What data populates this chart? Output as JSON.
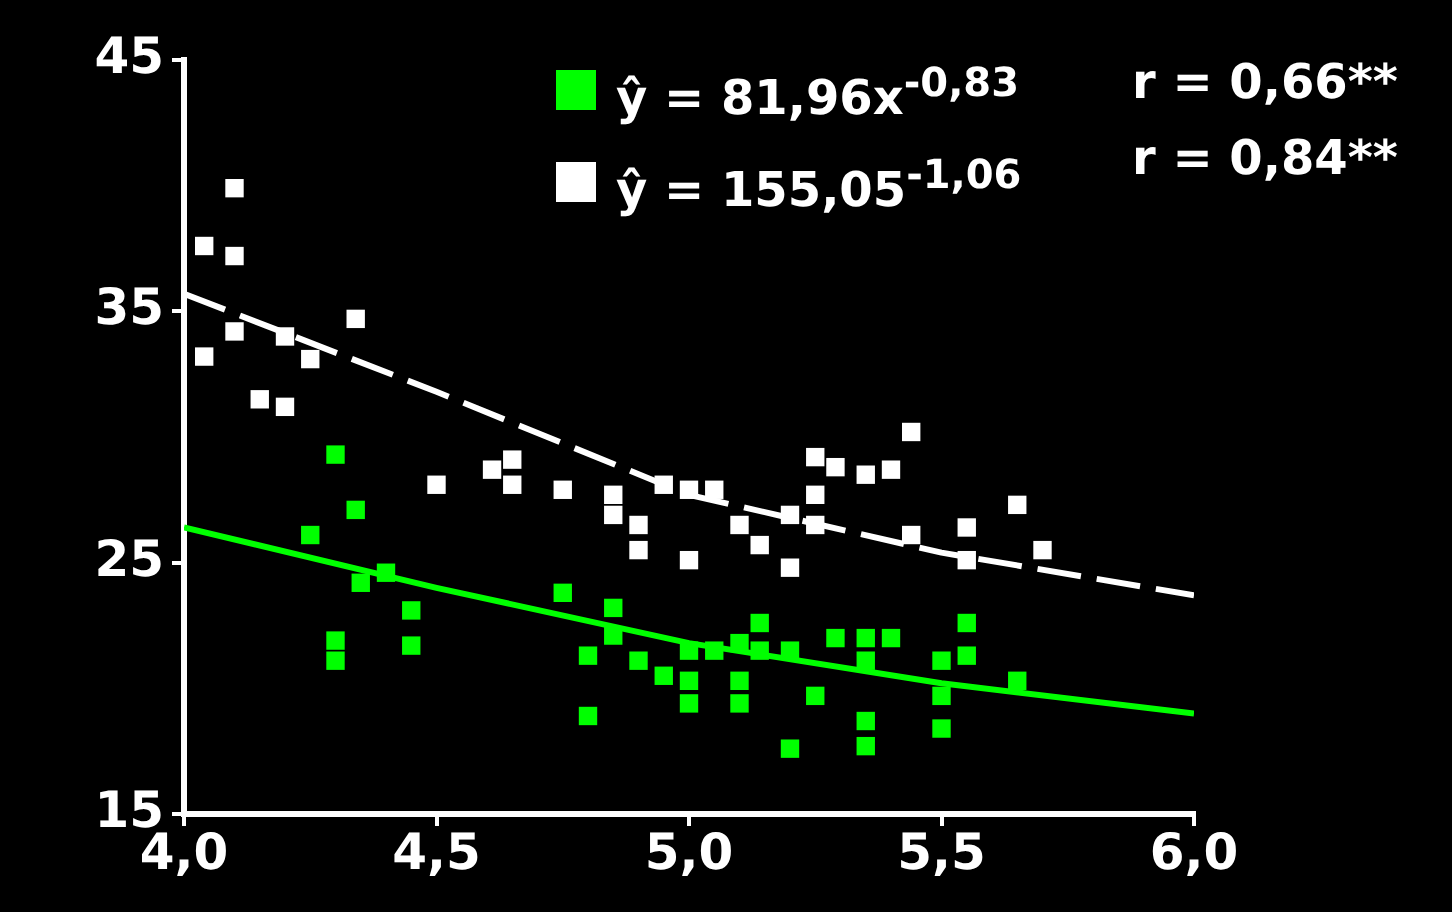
{
  "chart_data": {
    "type": "scatter",
    "marker": "square",
    "legend": "top right",
    "grid": false,
    "xlim": [
      4,
      6
    ],
    "xticks": [
      {
        "value": 4,
        "label": "4,0"
      },
      {
        "value": 4.5,
        "label": "4,5"
      },
      {
        "value": 5,
        "label": "5,0"
      },
      {
        "value": 5.5,
        "label": "5,5"
      },
      {
        "value": 6,
        "label": "6,0"
      }
    ],
    "ylim": [
      15,
      45
    ],
    "yticks": [
      15,
      25,
      35,
      45
    ],
    "annotations": [
      "r = 0,66**",
      "r = 0,84**"
    ],
    "series": [
      {
        "name": "ŷ = 81,96x$^{-0,83}$",
        "color": "#00ff00",
        "x": [
          4.3,
          4.34,
          4.25,
          4.3,
          4.3,
          4.35,
          4.4,
          4.45,
          4.45,
          4.75,
          4.8,
          4.8,
          4.85,
          4.85,
          4.9,
          4.95,
          5,
          5,
          5,
          5.05,
          5.1,
          5.1,
          5.1,
          5.14,
          5.14,
          5.2,
          5.2,
          5.25,
          5.29,
          5.35,
          5.35,
          5.35,
          5.35,
          5.4,
          5.5,
          5.5,
          5.5,
          5.55,
          5.55,
          5.65
        ],
        "values": [
          29.3,
          27.1,
          26.1,
          21.9,
          21.1,
          24.2,
          24.6,
          23.1,
          21.7,
          23.8,
          21.3,
          18.9,
          23.2,
          22.1,
          21.1,
          20.5,
          21.5,
          20.3,
          19.4,
          21.5,
          21.8,
          20.3,
          19.4,
          22.6,
          21.5,
          21.5,
          17.6,
          19.7,
          22,
          22,
          21.1,
          18.7,
          17.7,
          22,
          21.1,
          19.7,
          18.4,
          22.6,
          21.3,
          20.3
        ]
      },
      {
        "name": "ŷ = 155,05$^{-1,06}$",
        "color": "#ffffff",
        "x": [
          4.04,
          4.1,
          4.1,
          4.04,
          4.1,
          4.15,
          4.2,
          4.2,
          4.25,
          4.34,
          4.5,
          4.61,
          4.65,
          4.65,
          4.75,
          4.85,
          4.85,
          4.9,
          4.9,
          4.95,
          5,
          5,
          5.05,
          5.1,
          5.14,
          5.2,
          5.2,
          5.25,
          5.25,
          5.25,
          5.29,
          5.35,
          5.4,
          5.44,
          5.44,
          5.55,
          5.55,
          5.65,
          5.7
        ],
        "values": [
          37.6,
          39.9,
          37.2,
          33.2,
          34.2,
          31.5,
          31.2,
          34,
          33.1,
          34.7,
          28.1,
          28.7,
          29.1,
          28.1,
          27.9,
          27.7,
          26.9,
          26.5,
          25.5,
          28.1,
          27.9,
          25.1,
          27.9,
          26.5,
          25.7,
          26.9,
          24.8,
          29.2,
          27.7,
          26.5,
          28.8,
          28.5,
          28.7,
          30.2,
          26.1,
          26.4,
          25.1,
          27.3,
          25.5
        ]
      },
      {
        "type": "line",
        "color": "#00ff00",
        "line_style": "solid",
        "marker": "none",
        "x": [
          4,
          4.5,
          5,
          5.5,
          6
        ],
        "values": [
          26.4,
          24,
          21.8,
          20.2,
          19
        ]
      },
      {
        "type": "line",
        "color": "#ffffff",
        "line_style": "dashed",
        "marker": "none",
        "x": [
          4,
          4.5,
          5,
          5.5,
          6
        ],
        "values": [
          35.7,
          31.8,
          27.7,
          25.4,
          23.7
        ]
      }
    ]
  }
}
